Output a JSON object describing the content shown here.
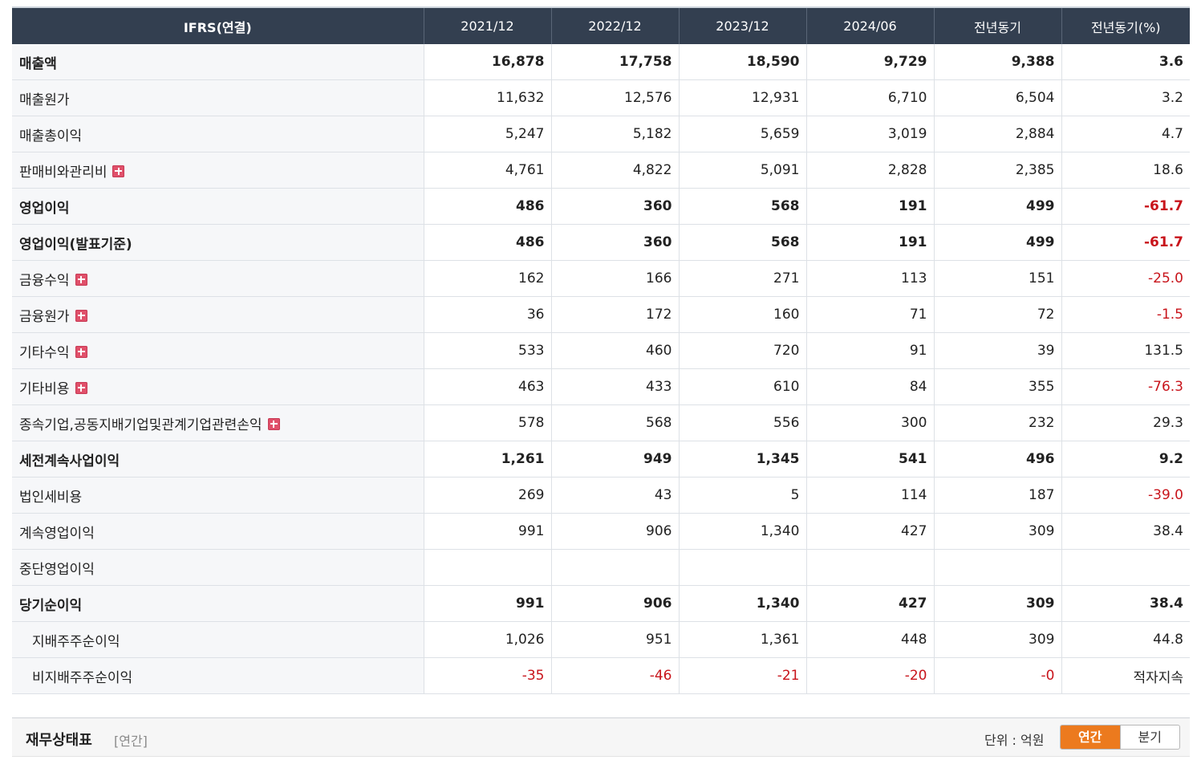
{
  "table": {
    "headers": [
      "IFRS(연결)",
      "2021/12",
      "2022/12",
      "2023/12",
      "2024/06",
      "전년동기",
      "전년동기(%)"
    ],
    "rows": [
      {
        "label": "매출액",
        "bold": true,
        "expand": false,
        "sub": false,
        "values": [
          "16,878",
          "17,758",
          "18,590",
          "9,729",
          "9,388",
          "3.6"
        ]
      },
      {
        "label": "매출원가",
        "bold": false,
        "expand": false,
        "sub": false,
        "values": [
          "11,632",
          "12,576",
          "12,931",
          "6,710",
          "6,504",
          "3.2"
        ]
      },
      {
        "label": "매출총이익",
        "bold": false,
        "expand": false,
        "sub": false,
        "values": [
          "5,247",
          "5,182",
          "5,659",
          "3,019",
          "2,884",
          "4.7"
        ]
      },
      {
        "label": "판매비와관리비",
        "bold": false,
        "expand": true,
        "sub": false,
        "values": [
          "4,761",
          "4,822",
          "5,091",
          "2,828",
          "2,385",
          "18.6"
        ]
      },
      {
        "label": "영업이익",
        "bold": true,
        "expand": false,
        "sub": false,
        "values": [
          "486",
          "360",
          "568",
          "191",
          "499",
          "-61.7"
        ]
      },
      {
        "label": "영업이익(발표기준)",
        "bold": true,
        "expand": false,
        "sub": false,
        "values": [
          "486",
          "360",
          "568",
          "191",
          "499",
          "-61.7"
        ]
      },
      {
        "label": "금융수익",
        "bold": false,
        "expand": true,
        "sub": false,
        "values": [
          "162",
          "166",
          "271",
          "113",
          "151",
          "-25.0"
        ]
      },
      {
        "label": "금융원가",
        "bold": false,
        "expand": true,
        "sub": false,
        "values": [
          "36",
          "172",
          "160",
          "71",
          "72",
          "-1.5"
        ]
      },
      {
        "label": "기타수익",
        "bold": false,
        "expand": true,
        "sub": false,
        "values": [
          "533",
          "460",
          "720",
          "91",
          "39",
          "131.5"
        ]
      },
      {
        "label": "기타비용",
        "bold": false,
        "expand": true,
        "sub": false,
        "values": [
          "463",
          "433",
          "610",
          "84",
          "355",
          "-76.3"
        ]
      },
      {
        "label": "종속기업,공동지배기업및관계기업관련손익",
        "bold": false,
        "expand": true,
        "sub": false,
        "values": [
          "578",
          "568",
          "556",
          "300",
          "232",
          "29.3"
        ]
      },
      {
        "label": "세전계속사업이익",
        "bold": true,
        "expand": false,
        "sub": false,
        "values": [
          "1,261",
          "949",
          "1,345",
          "541",
          "496",
          "9.2"
        ]
      },
      {
        "label": "법인세비용",
        "bold": false,
        "expand": false,
        "sub": false,
        "values": [
          "269",
          "43",
          "5",
          "114",
          "187",
          "-39.0"
        ]
      },
      {
        "label": "계속영업이익",
        "bold": false,
        "expand": false,
        "sub": false,
        "values": [
          "991",
          "906",
          "1,340",
          "427",
          "309",
          "38.4"
        ]
      },
      {
        "label": "중단영업이익",
        "bold": false,
        "expand": false,
        "sub": false,
        "values": [
          "",
          "",
          "",
          "",
          "",
          ""
        ]
      },
      {
        "label": "당기순이익",
        "bold": true,
        "expand": false,
        "sub": false,
        "values": [
          "991",
          "906",
          "1,340",
          "427",
          "309",
          "38.4"
        ]
      },
      {
        "label": "지배주주순이익",
        "bold": false,
        "expand": false,
        "sub": true,
        "values": [
          "1,026",
          "951",
          "1,361",
          "448",
          "309",
          "44.8"
        ]
      },
      {
        "label": "비지배주주순이익",
        "bold": false,
        "expand": false,
        "sub": true,
        "values": [
          "-35",
          "-46",
          "-21",
          "-20",
          "-0",
          "적자지속"
        ]
      }
    ]
  },
  "section": {
    "title": "재무상태표",
    "subtitle": "[연간]",
    "unit": "단위 : 억원",
    "toggle": {
      "annual": "연간",
      "quarterly": "분기"
    }
  },
  "colors": {
    "header_bg": "#333f50",
    "negative": "#c8141b",
    "toggle_active": "#ec7a1e",
    "expand_icon": "#e0506a"
  }
}
